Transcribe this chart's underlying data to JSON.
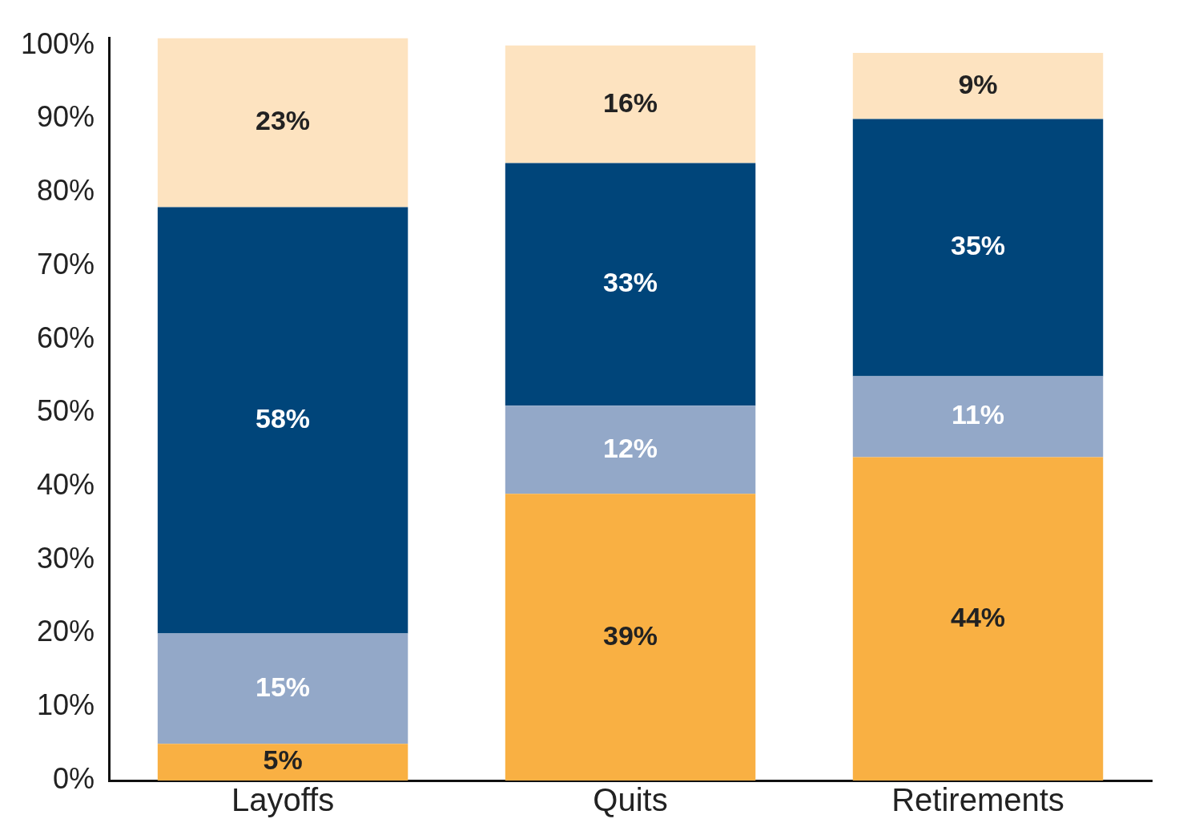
{
  "chart_data": {
    "type": "bar",
    "stacked": true,
    "categories": [
      "Layoffs",
      "Quits",
      "Retirements"
    ],
    "series": [
      {
        "color": "#f9b043",
        "values": [
          5,
          39,
          44
        ],
        "value_labels": [
          "5%",
          "39%",
          "44%"
        ]
      },
      {
        "color": "#93a8c8",
        "values": [
          15,
          12,
          11
        ],
        "value_labels": [
          "15%",
          "12%",
          "11%"
        ]
      },
      {
        "color": "#00457a",
        "values": [
          58,
          33,
          35
        ],
        "value_labels": [
          "58%",
          "33%",
          "35%"
        ]
      },
      {
        "color": "#fde3c0",
        "values": [
          23,
          16,
          9
        ],
        "value_labels": [
          "23%",
          "16%",
          "9%"
        ]
      }
    ],
    "ylim": [
      0,
      101
    ],
    "yticks": [
      {
        "value": 0,
        "label": "0%"
      },
      {
        "value": 10,
        "label": "10%"
      },
      {
        "value": 20,
        "label": "20%"
      },
      {
        "value": 30,
        "label": "30%"
      },
      {
        "value": 40,
        "label": "40%"
      },
      {
        "value": 50,
        "label": "50%"
      },
      {
        "value": 60,
        "label": "60%"
      },
      {
        "value": 70,
        "label": "70%"
      },
      {
        "value": 80,
        "label": "80%"
      },
      {
        "value": 90,
        "label": "90%"
      },
      {
        "value": 100,
        "label": "100%"
      }
    ],
    "grid": false,
    "legend": false
  }
}
